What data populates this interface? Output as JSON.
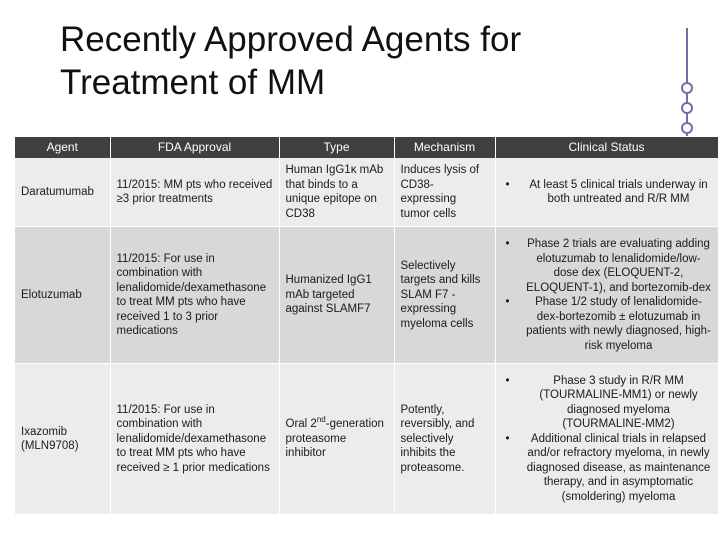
{
  "slide": {
    "title_line1": "Recently Approved Agents for",
    "title_line2": "Treatment of MM"
  },
  "table": {
    "headers": [
      "Agent",
      "FDA Approval",
      "Type",
      "Mechanism",
      "Clinical Status"
    ],
    "rows": [
      {
        "agent": "Daratumumab",
        "fda": "11/2015: MM pts who received ≥3 prior treatments",
        "type": "Human IgG1κ mAb that binds to a unique epitope on CD38",
        "mechanism": "Induces lysis of CD38-expressing tumor cells",
        "status": [
          "At least 5 clinical trials underway in both untreated and R/R MM"
        ]
      },
      {
        "agent": "Elotuzumab",
        "fda": "11/2015: For use in combination with lenalidomide/dexamethasone to treat MM pts who have received 1 to 3 prior medications",
        "type": "Humanized IgG1 mAb targeted against SLAMF7",
        "mechanism": "Selectively targets and kills SLAM F7 -expressing myeloma cells",
        "status": [
          "Phase 2 trials are evaluating adding elotuzumab to lenalidomide/low-dose dex (ELOQUENT-2, ELOQUENT-1), and bortezomib-dex",
          "Phase 1/2 study of lenalidomide-dex-bortezomib ± elotuzumab in patients with newly diagnosed, high-risk myeloma"
        ]
      },
      {
        "agent": "Ixazomib (MLN9708)",
        "fda": "11/2015: For use in combination with lenalidomide/dexamethasone to treat MM pts who have received ≥ 1 prior medications",
        "type_pre": "Oral 2",
        "type_sup": "nd",
        "type_post": "-generation proteasome inhibitor",
        "mechanism": "Potently, reversibly, and selectively inhibits the proteasome.",
        "status": [
          "Phase 3 study in R/R MM (TOURMALINE-MM1) or newly diagnosed myeloma (TOURMALINE-MM2)",
          "Additional clinical trials in relapsed and/or refractory myeloma, in newly diagnosed disease, as maintenance therapy, and in asymptomatic (smoldering) myeloma"
        ]
      }
    ],
    "bullet_glyph": "•"
  },
  "colors": {
    "header_bg": "#3f3f3f",
    "row_light": "#ececec",
    "row_dark": "#d8d8d8",
    "accent": "#7b6aa8"
  }
}
